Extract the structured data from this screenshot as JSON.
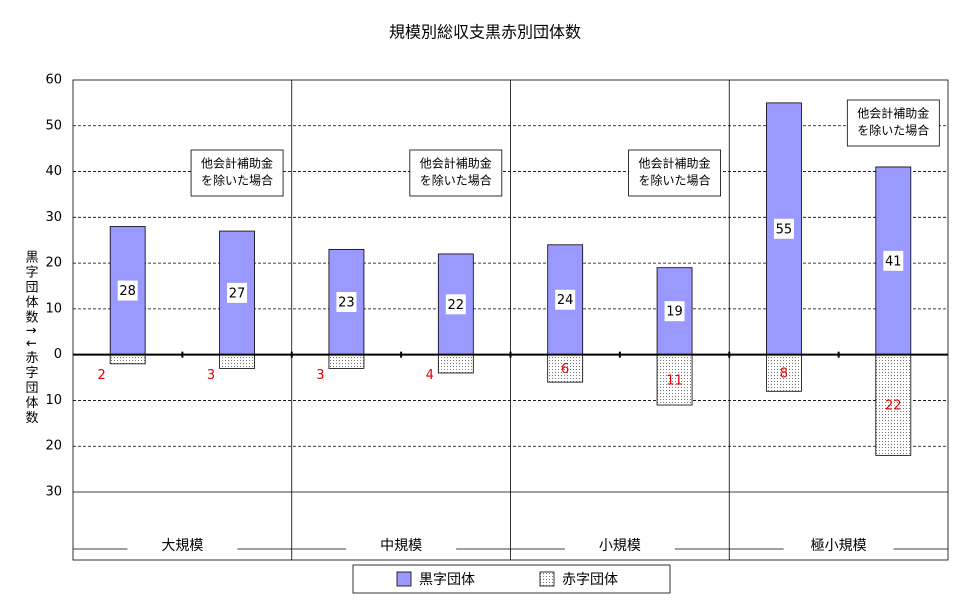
{
  "chart_data": {
    "type": "bar",
    "title": "規模別総収支黒赤別団体数",
    "y_label": "黒字団体数↑↓赤字団体数",
    "groups": [
      "大規模",
      "中規模",
      "小規模",
      "極小規模"
    ],
    "categories": [
      null,
      null,
      null,
      null,
      null,
      null,
      null,
      null
    ],
    "series": [
      {
        "name": "黒字団体",
        "color": "#9999ff",
        "values": [
          28,
          27,
          23,
          22,
          24,
          19,
          55,
          41
        ]
      },
      {
        "name": "赤字団体",
        "color": "#ffffff",
        "values": [
          -2,
          -3,
          -3,
          -4,
          -6,
          -11,
          -8,
          -22
        ],
        "value_labels": [
          "2",
          "3",
          "3",
          "4",
          "6",
          "11",
          "8",
          "22"
        ]
      }
    ],
    "annotations": [
      {
        "lines": [
          "他会計補助金",
          "を除いた場合"
        ]
      },
      {
        "lines": [
          "他会計補助金",
          "を除いた場合"
        ]
      },
      {
        "lines": [
          "他会計補助金",
          "を除いた場合"
        ]
      },
      {
        "lines": [
          "他会計補助金",
          "を除いた場合"
        ]
      }
    ],
    "ylim": [
      -30,
      60
    ],
    "yticks": [
      {
        "value": -30,
        "label": "30"
      },
      {
        "value": -20,
        "label": "20"
      },
      {
        "value": -10,
        "label": "10"
      },
      0,
      10,
      20,
      30,
      40,
      50,
      60
    ],
    "grid": true
  }
}
